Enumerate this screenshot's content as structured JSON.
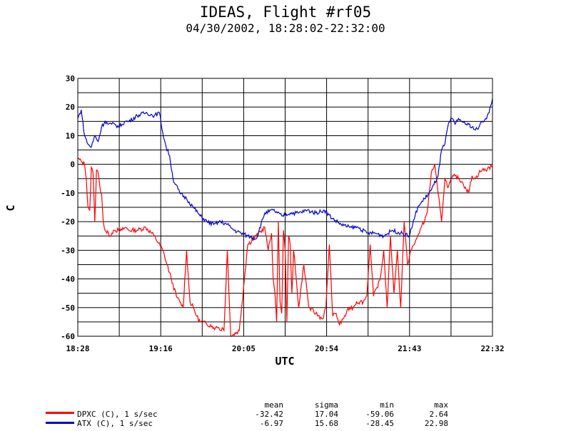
{
  "chart_data": {
    "type": "line",
    "title": "IDEAS, Flight #rf05",
    "subtitle": "04/30/2002, 18:28:02-22:32:00",
    "xlabel": "UTC",
    "ylabel": "C",
    "xlim": [
      "18:28",
      "22:32"
    ],
    "ylim": [
      -60,
      30
    ],
    "x_ticks": [
      "18:28",
      "19:16",
      "20:05",
      "20:54",
      "21:43",
      "22:32"
    ],
    "y_ticks": [
      30,
      20,
      10,
      0,
      -10,
      -20,
      -30,
      -40,
      -50,
      -60
    ],
    "grid": true,
    "series": [
      {
        "name": "DPXC (C), 1 s/sec",
        "color": "#ff0000",
        "mean": "-32.42",
        "sigma": "17.04",
        "min": "-59.06",
        "max": "2.64",
        "x_minutes_since_18_28": [
          0,
          2,
          4,
          5,
          6,
          7,
          8,
          9,
          10,
          11,
          12,
          13,
          14,
          15,
          16,
          17,
          18,
          19,
          20,
          21,
          22,
          24,
          26,
          28,
          30,
          35,
          40,
          45,
          50,
          55,
          58,
          60,
          62,
          64,
          66,
          68,
          70,
          72,
          74,
          76,
          78,
          80,
          81,
          82,
          83,
          84,
          85,
          86,
          88,
          90,
          95,
          100,
          105,
          110,
          112,
          114,
          115,
          116,
          117,
          118,
          119,
          120,
          121,
          122,
          123,
          124,
          125,
          126,
          127,
          130,
          133,
          136,
          140,
          144,
          146,
          148,
          150,
          152,
          154,
          156,
          158,
          160,
          162,
          164,
          166,
          168,
          170,
          172,
          174,
          176,
          178,
          180,
          182,
          184,
          186,
          188,
          190,
          192,
          194,
          196,
          198,
          200,
          202,
          204,
          206,
          208,
          210,
          212,
          214,
          216,
          218,
          220,
          222,
          224,
          226,
          228,
          230,
          232,
          234,
          236,
          238,
          240,
          242,
          244
        ],
        "y": [
          2,
          1,
          0,
          -5,
          -15,
          -16,
          -1,
          -3,
          -20,
          -2,
          -3,
          -8,
          -10,
          -20,
          -23,
          -24,
          -24,
          -25,
          -24,
          -23,
          -23,
          -23,
          -23,
          -22,
          -23,
          -23,
          -22,
          -25,
          -30,
          -40,
          -46,
          -48,
          -50,
          -30,
          -48,
          -50,
          -53,
          -55,
          -55,
          -56,
          -56,
          -57,
          -57,
          -57,
          -57,
          -58,
          -57,
          -58,
          -30,
          -60,
          -58,
          -28,
          -25,
          -22,
          -30,
          -24,
          -40,
          -45,
          -55,
          -20,
          -48,
          -52,
          -23,
          -30,
          -55,
          -25,
          -28,
          -45,
          -30,
          -50,
          -35,
          -50,
          -52,
          -54,
          -50,
          -28,
          -53,
          -52,
          -56,
          -54,
          -52,
          -50,
          -50,
          -48,
          -48,
          -48,
          -46,
          -28,
          -46,
          -43,
          -40,
          -30,
          -50,
          -25,
          -45,
          -30,
          -50,
          -20,
          -35,
          -30,
          -28,
          -25,
          -22,
          -20,
          -15,
          -3,
          0,
          -10,
          -20,
          -5,
          -8,
          -5,
          -4,
          -5,
          -6,
          -8,
          -10,
          -4,
          -5,
          -3,
          -2,
          -2,
          -1,
          -1
        ]
      },
      {
        "name": "ATX (C), 1 s/sec",
        "color": "#0000cc",
        "mean": "-6.97",
        "sigma": "15.68",
        "min": "-28.45",
        "max": "22.98",
        "x_minutes_since_18_28": [
          0,
          2,
          4,
          6,
          8,
          10,
          12,
          14,
          16,
          18,
          20,
          22,
          24,
          26,
          28,
          30,
          35,
          40,
          45,
          48,
          50,
          52,
          54,
          56,
          60,
          64,
          68,
          72,
          76,
          80,
          84,
          88,
          92,
          96,
          100,
          105,
          110,
          115,
          120,
          125,
          130,
          135,
          140,
          145,
          150,
          155,
          160,
          165,
          170,
          175,
          180,
          185,
          190,
          195,
          200,
          204,
          208,
          212,
          214,
          216,
          218,
          220,
          222,
          224,
          226,
          228,
          230,
          232,
          234,
          236,
          238,
          240,
          242,
          244
        ],
        "y": [
          16,
          19,
          10,
          7,
          6,
          10,
          8,
          13,
          15,
          14,
          14,
          14,
          13,
          14,
          15,
          15,
          17,
          18,
          17,
          18,
          11,
          6,
          3,
          -5,
          -10,
          -12,
          -15,
          -18,
          -20,
          -21,
          -20,
          -21,
          -23,
          -24,
          -25,
          -26,
          -17,
          -16,
          -18,
          -17,
          -17,
          -16,
          -17,
          -16,
          -19,
          -21,
          -22,
          -22,
          -24,
          -24,
          -25,
          -23,
          -24,
          -25,
          -15,
          -12,
          -9,
          -4,
          5,
          7,
          14,
          16,
          14,
          16,
          15,
          14,
          14,
          13,
          12,
          13,
          15,
          16,
          18,
          23
        ]
      }
    ]
  },
  "stats_header": {
    "mean": "mean",
    "sigma": "sigma",
    "min": "min",
    "max": "max"
  }
}
